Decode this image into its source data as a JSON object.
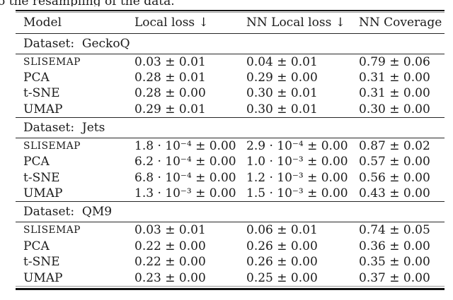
{
  "caption_fragment": "o the resampling of the data.",
  "colors": {
    "background": "#ffffff",
    "text": "#1b1b1b",
    "rule_dark": "#151515",
    "rule_mid": "#262626",
    "rule_light": "#9a9a9a"
  },
  "table": {
    "columns": [
      "Model",
      "Local loss ↓",
      "NN Local loss ↓",
      "NN Coverage ↑"
    ],
    "sections": [
      {
        "dataset_label": "Dataset:  GeckoQ",
        "rows": [
          {
            "model": "SLISEMAP",
            "small_caps": true,
            "bold_values": true,
            "values": [
              "0.03 ± 0.01",
              "0.04 ± 0.01",
              "0.79 ± 0.06"
            ]
          },
          {
            "model": "PCA",
            "small_caps": false,
            "bold_values": false,
            "values": [
              "0.28 ± 0.01",
              "0.29 ± 0.00",
              "0.31 ± 0.00"
            ]
          },
          {
            "model": "t-SNE",
            "small_caps": false,
            "bold_values": false,
            "values": [
              "0.28 ± 0.00",
              "0.30 ± 0.01",
              "0.31 ± 0.00"
            ]
          },
          {
            "model": "UMAP",
            "small_caps": false,
            "bold_values": false,
            "values": [
              "0.29 ± 0.01",
              "0.30 ± 0.01",
              "0.30 ± 0.00"
            ]
          }
        ]
      },
      {
        "dataset_label": "Dataset:  Jets",
        "rows": [
          {
            "model": "SLISEMAP",
            "small_caps": true,
            "bold_values": true,
            "values": [
              "1.8 · 10⁻⁴ ± 0.00",
              "2.9 · 10⁻⁴ ± 0.00",
              "0.87 ± 0.02"
            ]
          },
          {
            "model": "PCA",
            "small_caps": false,
            "bold_values": false,
            "values": [
              "6.2 · 10⁻⁴ ± 0.00",
              "1.0 · 10⁻³ ± 0.00",
              "0.57 ± 0.00"
            ]
          },
          {
            "model": "t-SNE",
            "small_caps": false,
            "bold_values": false,
            "values": [
              "6.8 · 10⁻⁴ ± 0.00",
              "1.2 · 10⁻³ ± 0.00",
              "0.56 ± 0.00"
            ]
          },
          {
            "model": "UMAP",
            "small_caps": false,
            "bold_values": false,
            "values": [
              "1.3 · 10⁻³ ± 0.00",
              "1.5 · 10⁻³ ± 0.00",
              "0.43 ± 0.00"
            ]
          }
        ]
      },
      {
        "dataset_label": "Dataset:  QM9",
        "rows": [
          {
            "model": "SLISEMAP",
            "small_caps": true,
            "bold_values": true,
            "values": [
              "0.03 ± 0.01",
              "0.06 ± 0.01",
              "0.74 ± 0.05"
            ]
          },
          {
            "model": "PCA",
            "small_caps": false,
            "bold_values": false,
            "values": [
              "0.22 ± 0.00",
              "0.26 ± 0.00",
              "0.36 ± 0.00"
            ]
          },
          {
            "model": "t-SNE",
            "small_caps": false,
            "bold_values": false,
            "values": [
              "0.22 ± 0.00",
              "0.26 ± 0.00",
              "0.35 ± 0.00"
            ]
          },
          {
            "model": "UMAP",
            "small_caps": false,
            "bold_values": false,
            "values": [
              "0.23 ± 0.00",
              "0.25 ± 0.00",
              "0.37 ± 0.00"
            ]
          }
        ]
      }
    ]
  }
}
